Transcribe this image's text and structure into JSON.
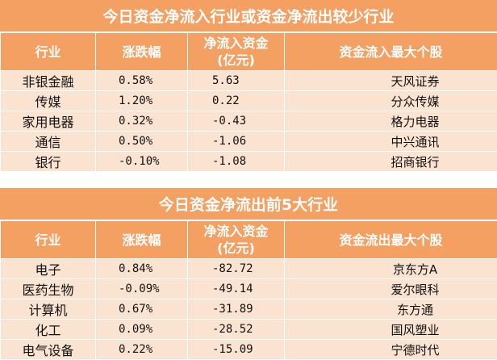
{
  "inflow_table": {
    "title": "今日资金净流入行业或资金净流出较少行业",
    "headers": {
      "industry": "行业",
      "change": "涨跌幅",
      "net_inflow_line1": "净流入资金",
      "net_inflow_line2": "(亿元)",
      "top_stock": "资金流入最大个股"
    },
    "rows": [
      {
        "industry": "非银金融",
        "change": "0.58%",
        "net_inflow": "5.63",
        "top_stock": "天风证券"
      },
      {
        "industry": "传媒",
        "change": "1.20%",
        "net_inflow": "0.22",
        "top_stock": "分众传媒"
      },
      {
        "industry": "家用电器",
        "change": "0.32%",
        "net_inflow": "-0.43",
        "top_stock": "格力电器"
      },
      {
        "industry": "通信",
        "change": "0.50%",
        "net_inflow": "-1.06",
        "top_stock": "中兴通讯"
      },
      {
        "industry": "银行",
        "change": "-0.10%",
        "net_inflow": "-1.08",
        "top_stock": "招商银行"
      }
    ]
  },
  "outflow_table": {
    "title": "今日资金净流出前5大行业",
    "headers": {
      "industry": "行业",
      "change": "涨跌幅",
      "net_inflow_line1": "净流入资金",
      "net_inflow_line2": "(亿元)",
      "top_stock": "资金流出最大个股"
    },
    "rows": [
      {
        "industry": "电子",
        "change": "0.84%",
        "net_inflow": "-82.72",
        "top_stock": "京东方A"
      },
      {
        "industry": "医药生物",
        "change": "-0.09%",
        "net_inflow": "-49.14",
        "top_stock": "爱尔眼科"
      },
      {
        "industry": "计算机",
        "change": "0.67%",
        "net_inflow": "-31.89",
        "top_stock": "东方通"
      },
      {
        "industry": "化工",
        "change": "0.09%",
        "net_inflow": "-28.52",
        "top_stock": "国风塑业"
      },
      {
        "industry": "电气设备",
        "change": "0.22%",
        "net_inflow": "-15.09",
        "top_stock": "宁德时代"
      }
    ]
  },
  "colors": {
    "header_bg": "#f3a062",
    "row_bg": "#fbe3d2",
    "header_text": "#ffffff"
  }
}
